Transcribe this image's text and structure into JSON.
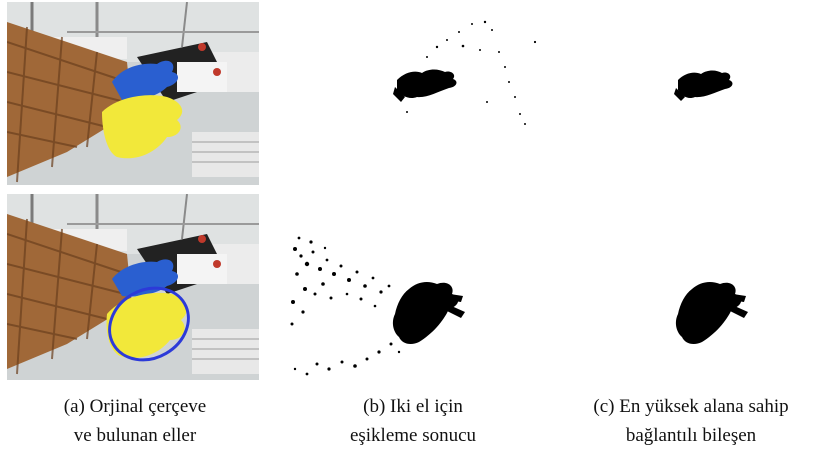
{
  "captions": {
    "a": {
      "line1": "(a) Orjinal çerçeve",
      "line2": "ve bulunan eller"
    },
    "b": {
      "line1": "(b) Iki el için",
      "line2": "eşikleme sonucu"
    },
    "c": {
      "line1": "(c) En yüksek alana sahip",
      "line2": "bağlantılı bileşen"
    }
  },
  "colors": {
    "glove_blue": "#2a5fd0",
    "glove_yellow": "#f2e83a",
    "sleeve_plaid": "#a06838",
    "ellipse_blue": "#2c3ad8",
    "mask_black": "#000000"
  }
}
